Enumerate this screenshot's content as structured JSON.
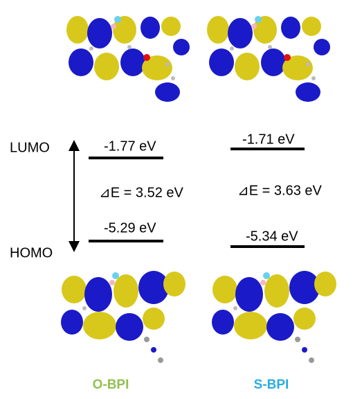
{
  "axis_labels": {
    "lumo": "LUMO",
    "homo": "HOMO"
  },
  "molecules": [
    {
      "name": "O-BPI",
      "lumo": "-1.77 eV",
      "homo": "-5.29 eV",
      "gap": "⊿E = 3.52 eV"
    },
    {
      "name": "S-BPI",
      "lumo": "-1.71 eV",
      "homo": "-5.34 eV",
      "gap": "⊿E = 3.63 eV"
    }
  ]
}
